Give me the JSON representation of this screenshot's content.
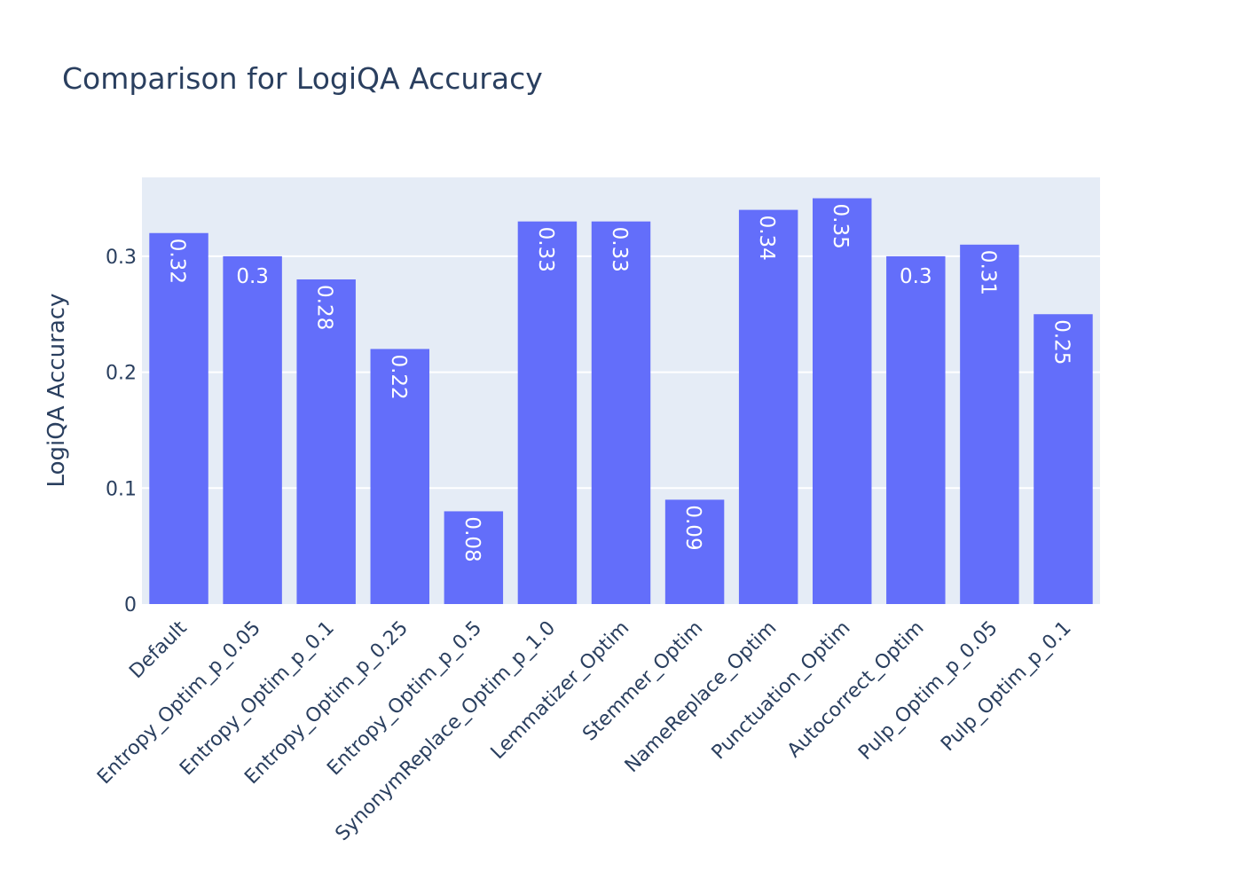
{
  "chart_data": {
    "type": "bar",
    "title": "Comparison for LogiQA Accuracy",
    "xlabel": "",
    "ylabel": "LogiQA Accuracy",
    "ylim": [
      0,
      0.368
    ],
    "yticks": [
      0,
      0.1,
      0.2,
      0.3
    ],
    "ytick_labels": [
      "0",
      "0.1",
      "0.2",
      "0.3"
    ],
    "grid": true,
    "categories": [
      "Default",
      "Entropy_Optim_p_0.05",
      "Entropy_Optim_p_0.1",
      "Entropy_Optim_p_0.25",
      "Entropy_Optim_p_0.5",
      "SynonymReplace_Optim_p_1.0",
      "Lemmatizer_Optim",
      "Stemmer_Optim",
      "NameReplace_Optim",
      "Punctuation_Optim",
      "Autocorrect_Optim",
      "Pulp_Optim_p_0.05",
      "Pulp_Optim_p_0.1"
    ],
    "values": [
      0.32,
      0.3,
      0.28,
      0.22,
      0.08,
      0.33,
      0.33,
      0.09,
      0.34,
      0.35,
      0.3,
      0.31,
      0.25
    ],
    "data_labels": [
      "0.32",
      "0.3",
      "0.28",
      "0.22",
      "0.08",
      "0.33",
      "0.33",
      "0.09",
      "0.34",
      "0.35",
      "0.3",
      "0.31",
      "0.25"
    ],
    "colors": {
      "bar": "#636efa",
      "plot_background": "#e5ecf6",
      "gridline": "#ffffff",
      "text": "#2a3f5f",
      "bar_label": "#ffffff"
    }
  }
}
